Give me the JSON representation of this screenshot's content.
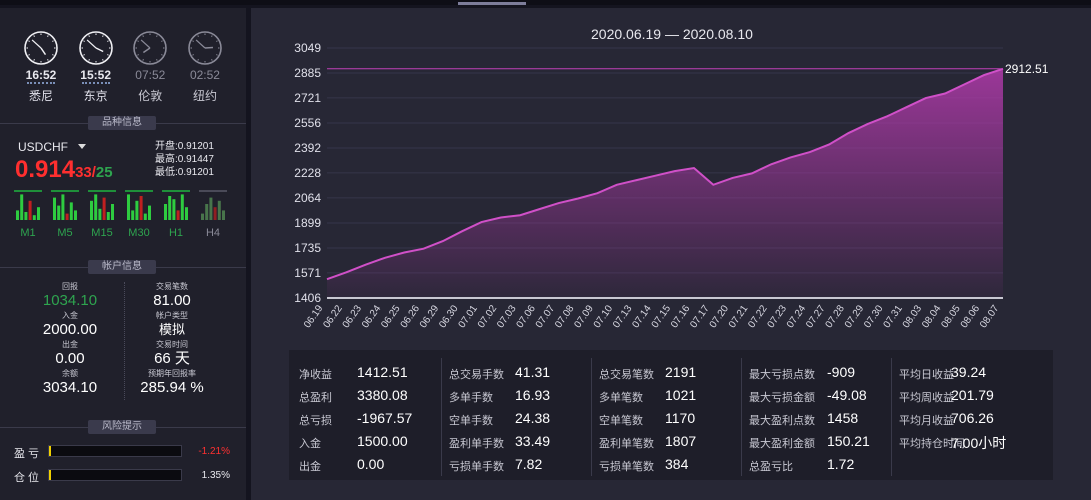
{
  "clocks": [
    {
      "time": "16:52",
      "city": "悉尼",
      "active": true,
      "hour": 16,
      "minute": 52
    },
    {
      "time": "15:52",
      "city": "东京",
      "active": true,
      "hour": 15,
      "minute": 52
    },
    {
      "time": "07:52",
      "city": "伦敦",
      "active": false,
      "hour": 7,
      "minute": 52
    },
    {
      "time": "02:52",
      "city": "纽约",
      "active": false,
      "hour": 2,
      "minute": 52
    }
  ],
  "product_section": {
    "title": "品种信息"
  },
  "symbol": {
    "name": "USDCHF",
    "price_main": "0.914",
    "price_small": "33",
    "slash": "/",
    "price_other": "25",
    "open_label": "开盘:",
    "open": "0.91201",
    "high_label": "最高:",
    "high": "0.91447",
    "low_label": "最低:",
    "low": "0.91201"
  },
  "timeframes": [
    {
      "label": "M1",
      "active": true
    },
    {
      "label": "M5",
      "active": true
    },
    {
      "label": "M15",
      "active": true
    },
    {
      "label": "M30",
      "active": true
    },
    {
      "label": "H1",
      "active": true
    },
    {
      "label": "H4",
      "active": false
    }
  ],
  "account_section": {
    "title": "帐户信息"
  },
  "account": {
    "return_label": "回报",
    "return_value": "1034.10",
    "trades_label": "交易笔数",
    "trades_value": "81.00",
    "deposit_label": "入金",
    "deposit_value": "2000.00",
    "type_label": "帐户类型",
    "type_value": "模拟",
    "withdraw_label": "出金",
    "withdraw_value": "0.00",
    "time_label": "交易时间",
    "time_value": "66 天",
    "balance_label": "余额",
    "balance_value": "3034.10",
    "annual_label": "预期年回报率",
    "annual_value": "285.94 %"
  },
  "risk_section": {
    "title": "风险提示"
  },
  "risk": {
    "pl_label": "盈 亏",
    "pl_value": "-1.21%",
    "pl_color": "#ff3030",
    "pos_label": "仓 位",
    "pos_value": "1.35%",
    "pos_color": "#e8e8ee"
  },
  "chart_data": {
    "type": "area",
    "title": "2020.06.19 — 2020.08.10",
    "x": [
      "06.19",
      "06.22",
      "06.23",
      "06.24",
      "06.25",
      "06.26",
      "06.29",
      "06.30",
      "07.01",
      "07.02",
      "07.03",
      "07.06",
      "07.07",
      "07.08",
      "07.09",
      "07.10",
      "07.13",
      "07.14",
      "07.15",
      "07.16",
      "07.17",
      "07.20",
      "07.21",
      "07.22",
      "07.23",
      "07.24",
      "07.27",
      "07.28",
      "07.29",
      "07.30",
      "07.31",
      "08.03",
      "08.04",
      "08.05",
      "08.06",
      "08.07"
    ],
    "values": [
      1530,
      1575,
      1625,
      1670,
      1705,
      1730,
      1780,
      1845,
      1905,
      1935,
      1950,
      1990,
      2030,
      2060,
      2095,
      2150,
      2180,
      2210,
      2240,
      2260,
      2150,
      2195,
      2225,
      2285,
      2330,
      2365,
      2415,
      2490,
      2550,
      2600,
      2660,
      2720,
      2750,
      2810,
      2870,
      2912.51
    ],
    "yticks": [
      1406,
      1571,
      1735,
      1899,
      2064,
      2228,
      2392,
      2556,
      2721,
      2885,
      3049
    ],
    "ylim": [
      1406,
      3049
    ],
    "reference_value": 2912.51,
    "end_label": "2912.51",
    "color": "#b03aaa"
  },
  "stats": [
    [
      {
        "label": "净收益",
        "value": "1412.51"
      },
      {
        "label": "总盈利",
        "value": "3380.08"
      },
      {
        "label": "总亏损",
        "value": "-1967.57"
      },
      {
        "label": "入金",
        "value": "1500.00"
      },
      {
        "label": "出金",
        "value": "0.00"
      }
    ],
    [
      {
        "label": "总交易手数",
        "value": "41.31"
      },
      {
        "label": "多单手数",
        "value": "16.93"
      },
      {
        "label": "空单手数",
        "value": "24.38"
      },
      {
        "label": "盈利单手数",
        "value": "33.49"
      },
      {
        "label": "亏损单手数",
        "value": "7.82"
      }
    ],
    [
      {
        "label": "总交易笔数",
        "value": "2191"
      },
      {
        "label": "多单笔数",
        "value": "1021"
      },
      {
        "label": "空单笔数",
        "value": "1170"
      },
      {
        "label": "盈利单笔数",
        "value": "1807"
      },
      {
        "label": "亏损单笔数",
        "value": "384"
      }
    ],
    [
      {
        "label": "最大亏损点数",
        "value": "-909"
      },
      {
        "label": "最大亏损金额",
        "value": "-49.08"
      },
      {
        "label": "最大盈利点数",
        "value": "1458"
      },
      {
        "label": "最大盈利金额",
        "value": "150.21"
      },
      {
        "label": "总盈亏比",
        "value": "1.72"
      }
    ],
    [
      {
        "label": "平均日收益",
        "value": "39.24"
      },
      {
        "label": "平均周收益",
        "value": "201.79"
      },
      {
        "label": "平均月收益",
        "value": "706.26"
      },
      {
        "label": "平均持仓时间",
        "value": "7.00小时"
      }
    ]
  ]
}
